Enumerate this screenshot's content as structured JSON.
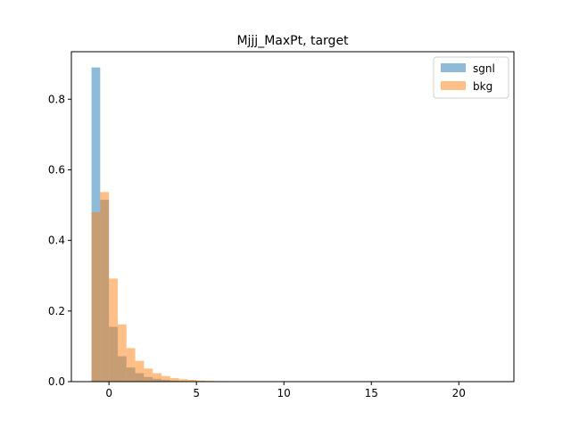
{
  "chart_data": {
    "type": "histogram",
    "title": "Mjjj_MaxPt, target",
    "xlabel": "",
    "ylabel": "",
    "xlim": [
      -2.15,
      23.15
    ],
    "ylim": [
      0,
      0.9345
    ],
    "x_ticks": [
      0,
      5,
      10,
      15,
      20
    ],
    "y_ticks": [
      0.0,
      0.2,
      0.4,
      0.6,
      0.8
    ],
    "x_tick_labels": [
      "0",
      "5",
      "10",
      "15",
      "20"
    ],
    "y_tick_labels": [
      "0.0",
      "0.2",
      "0.4",
      "0.6",
      "0.8"
    ],
    "grid": false,
    "legend_position": "top-right",
    "bin_start": -1,
    "bin_width": 0.5,
    "series": [
      {
        "name": "sgnl",
        "color": "#1f77b4",
        "alpha": 0.5,
        "values": [
          0.89,
          0.515,
          0.155,
          0.072,
          0.04,
          0.024,
          0.013,
          0.008,
          0.005,
          0.003,
          0.002,
          0.0015,
          0.001,
          0.0008,
          0.0005,
          0.0003,
          0.0002,
          0.0001
        ]
      },
      {
        "name": "bkg",
        "color": "#ff7f0e",
        "alpha": 0.5,
        "values": [
          0.48,
          0.537,
          0.292,
          0.162,
          0.095,
          0.059,
          0.037,
          0.024,
          0.016,
          0.01,
          0.007,
          0.005,
          0.003,
          0.002,
          0.0015,
          0.001,
          0.0008,
          0.0005
        ]
      }
    ]
  }
}
